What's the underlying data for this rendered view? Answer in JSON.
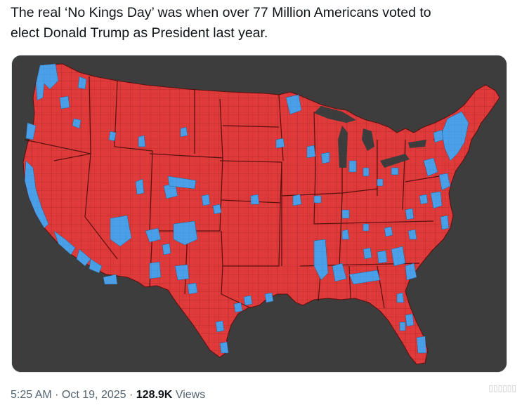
{
  "tweet": {
    "text": "The real ‘No Kings Day’ was when over 77 Million Americans voted to\nelect Donald Trump as President last year."
  },
  "media": {
    "alt": "US county-level election map",
    "colors": {
      "background": "#3d3d3d",
      "republican": "#e03a3a",
      "democrat": "#4aa0e8",
      "border": "#5a1010"
    }
  },
  "meta": {
    "time": "5:25 AM",
    "separator": " · ",
    "date": "Oct 19, 2025",
    "views_count": "128.9K",
    "views_label": "Views"
  },
  "watermark": {
    "text": "▯▯▯▯▯▯"
  }
}
